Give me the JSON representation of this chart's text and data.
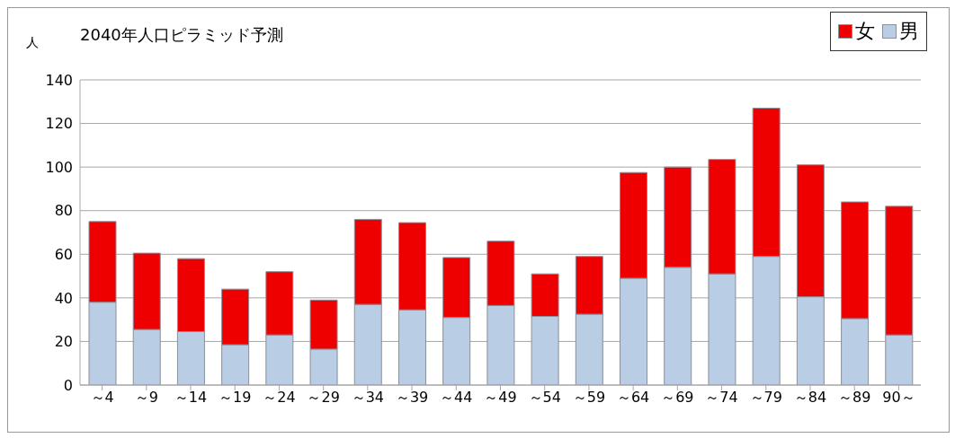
{
  "chart_data": {
    "type": "bar",
    "title": "2040年人口ピラミッド予測",
    "ylabel": "人",
    "categories": [
      "～4",
      "～9",
      "～14",
      "～19",
      "～24",
      "～29",
      "～34",
      "～39",
      "～44",
      "～49",
      "～54",
      "～59",
      "～64",
      "～69",
      "～74",
      "～79",
      "～84",
      "～89",
      "90～"
    ],
    "series": [
      {
        "name": "男",
        "color": "#b9cde5",
        "values": [
          38,
          25.5,
          24.5,
          18.5,
          23,
          16.5,
          37,
          34.5,
          31,
          36.5,
          31.5,
          32.5,
          49,
          54,
          51,
          59,
          40.5,
          30.5,
          23
        ]
      },
      {
        "name": "女",
        "color": "#ee0000",
        "values": [
          37,
          35,
          33.5,
          25.5,
          29,
          22.5,
          39,
          40,
          27.5,
          29.5,
          19.5,
          26.5,
          48.5,
          46,
          52.5,
          68,
          60.5,
          53.5,
          59
        ]
      }
    ],
    "stacked": true,
    "ylim": [
      0,
      140
    ],
    "yticks": [
      0,
      20,
      40,
      60,
      80,
      100,
      120,
      140
    ],
    "grid": "y",
    "legend": "top right"
  }
}
